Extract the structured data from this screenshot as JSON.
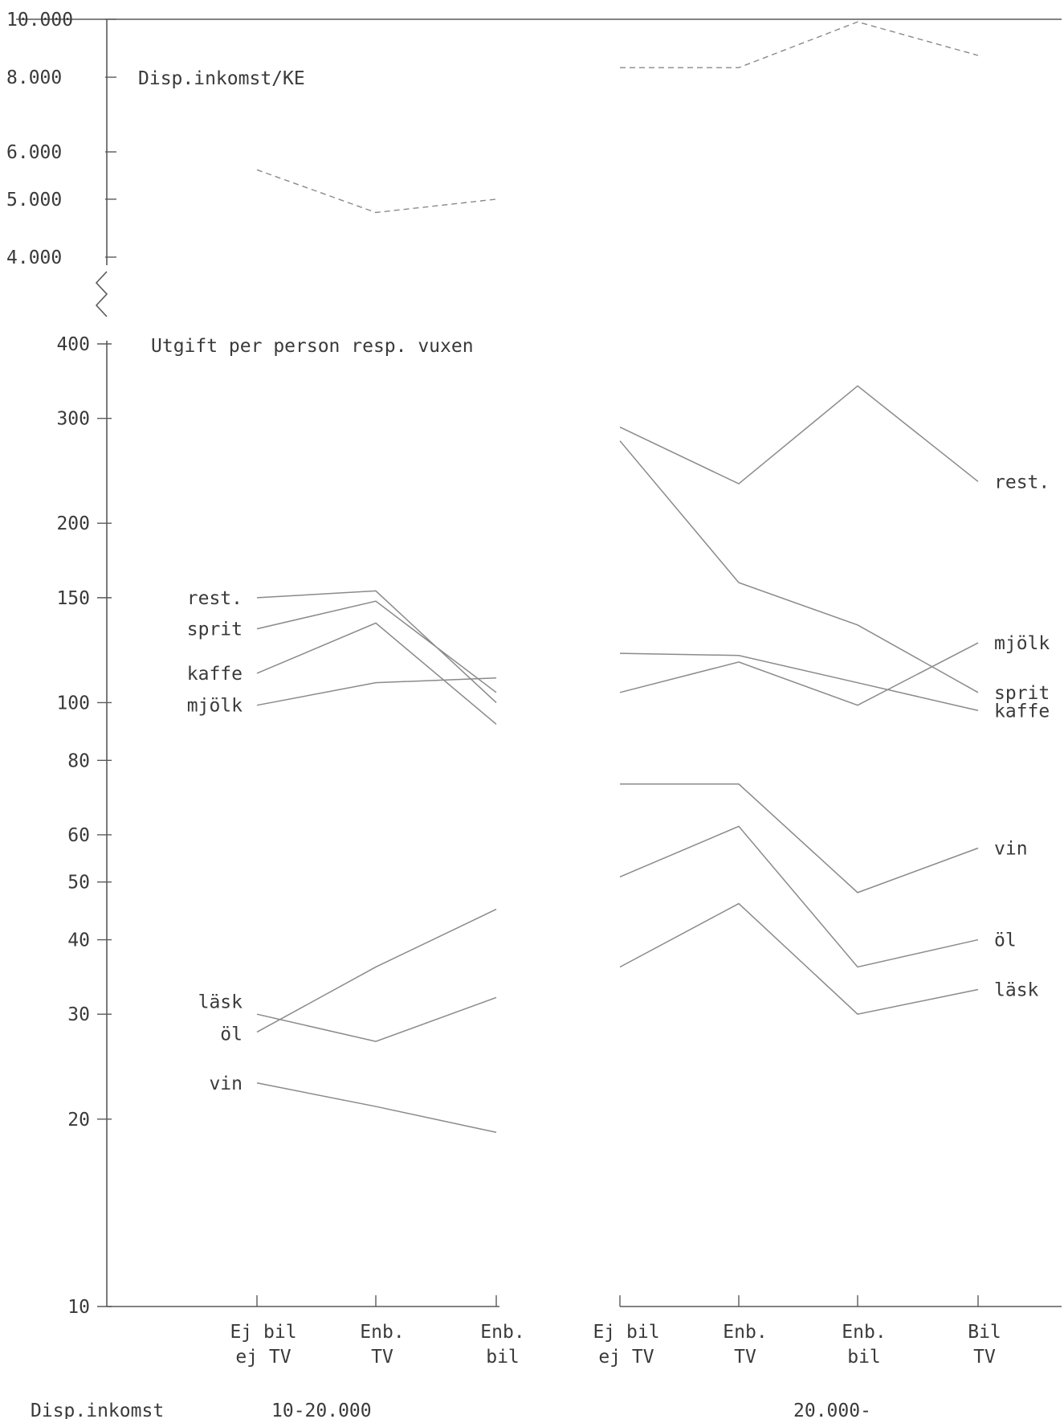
{
  "chart_data": {
    "type": "line",
    "titles": {
      "income_panel": "Disp.inkomst/KE",
      "expense_panel": "Utgift per person resp. vuxen"
    },
    "y_scale": "log",
    "income_axis": {
      "ticks": [
        "10.000",
        "8.000",
        "6.000",
        "5.000",
        "4.000"
      ],
      "tick_values": [
        10000,
        8000,
        6000,
        5000,
        4000
      ]
    },
    "expense_axis": {
      "ticks": [
        "400",
        "300",
        "200",
        "150",
        "100",
        "80",
        "60",
        "50",
        "40",
        "30",
        "20",
        "10"
      ],
      "tick_values": [
        400,
        300,
        200,
        150,
        100,
        80,
        60,
        50,
        40,
        30,
        20,
        10
      ]
    },
    "x_label": "Disp.inkomst",
    "groups": [
      {
        "name": "10-20.000",
        "categories": [
          [
            "Ej bil",
            "ej TV"
          ],
          [
            "Enb.",
            "TV"
          ],
          [
            "Enb.",
            "bil"
          ]
        ],
        "income": [
          5600,
          4750,
          5000
        ],
        "series": [
          {
            "name": "rest.",
            "values": [
              150,
              154,
              100
            ]
          },
          {
            "name": "sprit",
            "values": [
              133,
              148,
              104
            ]
          },
          {
            "name": "kaffe",
            "values": [
              112,
              136,
              92
            ]
          },
          {
            "name": "mjölk",
            "values": [
              99,
              108,
              110
            ]
          },
          {
            "name": "läsk",
            "values": [
              30,
              27,
              32
            ]
          },
          {
            "name": "öl",
            "values": [
              28,
              36,
              45
            ]
          },
          {
            "name": "vin",
            "values": [
              23,
              21,
              19
            ]
          }
        ]
      },
      {
        "name": "20.000-",
        "categories": [
          [
            "Ej bil",
            "ej TV"
          ],
          [
            "Enb.",
            "TV"
          ],
          [
            "Enb.",
            "bil"
          ],
          [
            "Bil",
            "TV"
          ]
        ],
        "income": [
          8300,
          8300,
          9900,
          8700
        ],
        "series": [
          {
            "name": "rest.",
            "values": [
              290,
              233,
              340,
              235
            ]
          },
          {
            "name": "sprit",
            "values": [
              275,
              159,
              135,
              104
            ]
          },
          {
            "name": "kaffe",
            "values": [
              121,
              120,
              108,
              97
            ]
          },
          {
            "name": "mjölk",
            "values": [
              104,
              117,
              99,
              126
            ]
          },
          {
            "name": "vin",
            "values": [
              73,
              73,
              48,
              57
            ]
          },
          {
            "name": "öl",
            "values": [
              51,
              62,
              36,
              40
            ]
          },
          {
            "name": "läsk",
            "values": [
              36,
              46,
              30,
              33
            ]
          }
        ]
      }
    ]
  }
}
